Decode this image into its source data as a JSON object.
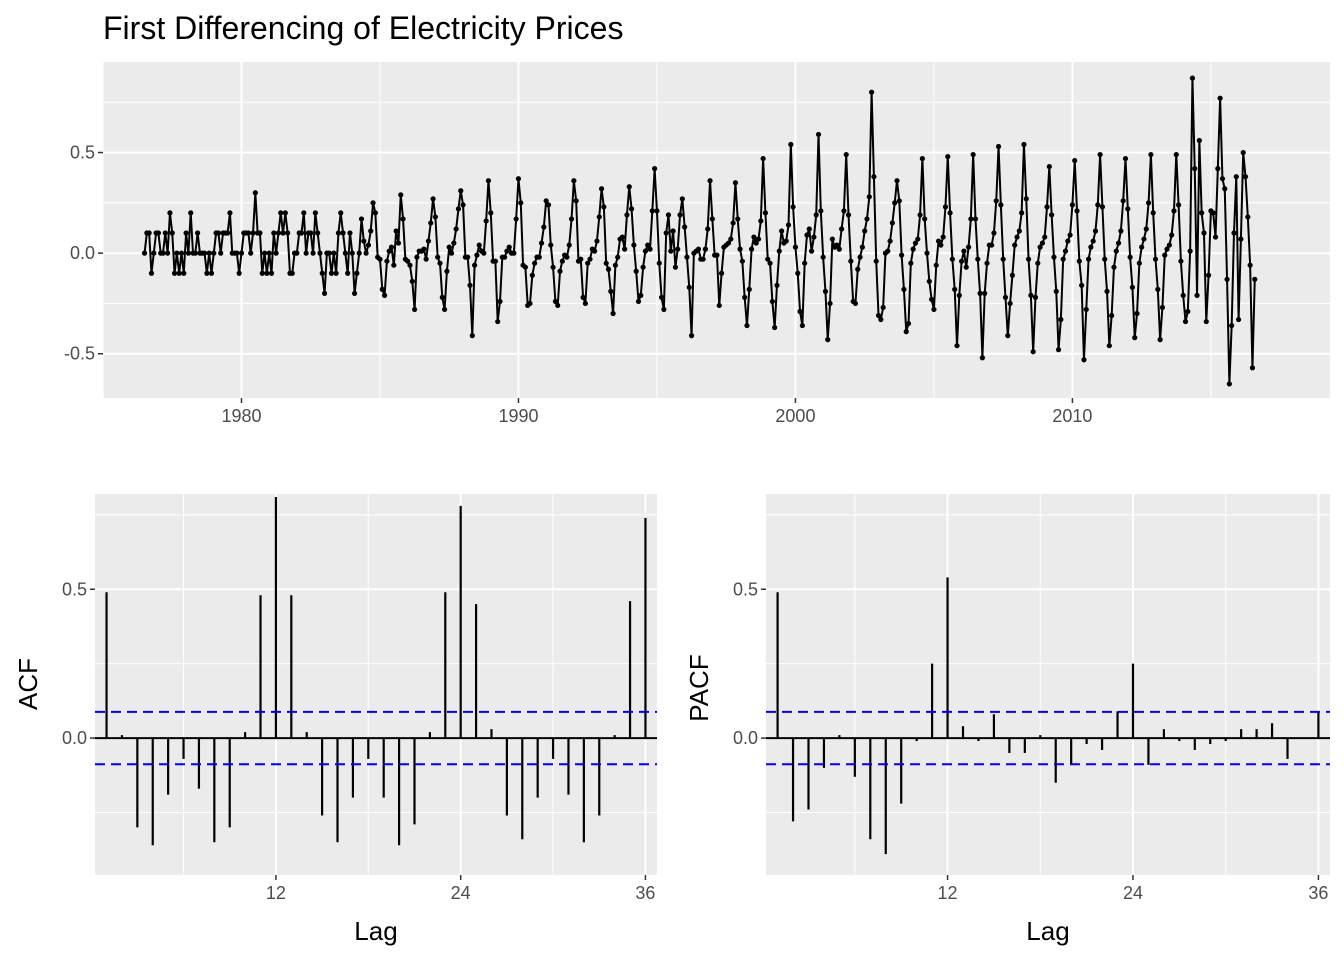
{
  "chart_data": [
    {
      "type": "line",
      "title": "First Differencing of Electricity Prices",
      "xlabel": "",
      "ylabel": "",
      "xlim": [
        1975.0,
        2019.3
      ],
      "ylim": [
        -0.72,
        0.95
      ],
      "x_ticks": [
        1980,
        1990,
        2000,
        2010
      ],
      "y_ticks": [
        -0.5,
        0.0,
        0.5
      ],
      "x_tick_labels": [
        "1980",
        "1990",
        "2000",
        "2010"
      ],
      "y_tick_labels": [
        "-0.5",
        "0.0",
        "0.5"
      ],
      "grid": true,
      "series": [
        {
          "start": 1976.5,
          "frequency": 12,
          "values": [
            0.0,
            0.1,
            0.1,
            -0.1,
            0.0,
            0.1,
            0.1,
            0.0,
            0.0,
            0.1,
            0.0,
            0.2,
            0.1,
            -0.1,
            0.0,
            -0.1,
            0.0,
            -0.1,
            0.1,
            0.0,
            0.2,
            0.0,
            0.0,
            0.1,
            0.0,
            0.0,
            0.0,
            -0.1,
            0.0,
            -0.1,
            0.0,
            0.1,
            0.1,
            0.0,
            0.1,
            0.1,
            0.1,
            0.2,
            0.0,
            0.0,
            0.0,
            -0.1,
            0.0,
            0.1,
            0.1,
            0.1,
            0.0,
            0.1,
            0.3,
            0.1,
            0.1,
            -0.1,
            0.0,
            -0.1,
            0.0,
            -0.1,
            0.1,
            0.0,
            0.1,
            0.2,
            0.1,
            0.2,
            0.1,
            -0.1,
            -0.1,
            0.0,
            0.0,
            0.1,
            0.1,
            0.2,
            0.0,
            0.1,
            0.1,
            0.0,
            0.2,
            0.1,
            0.0,
            -0.1,
            -0.2,
            0.0,
            0.0,
            -0.1,
            0.0,
            -0.1,
            0.1,
            0.2,
            0.1,
            0.0,
            -0.1,
            0.1,
            0.0,
            -0.2,
            -0.1,
            0.0,
            0.17,
            0.06,
            0.0,
            0.04,
            0.11,
            0.25,
            0.2,
            -0.02,
            -0.03,
            -0.18,
            -0.21,
            -0.04,
            0.01,
            0.03,
            -0.06,
            0.11,
            0.05,
            0.29,
            0.17,
            -0.03,
            -0.04,
            -0.06,
            -0.14,
            -0.28,
            -0.02,
            0.01,
            0.01,
            0.02,
            -0.03,
            0.06,
            0.15,
            0.27,
            0.18,
            -0.02,
            -0.05,
            -0.22,
            -0.28,
            -0.09,
            0.03,
            0.0,
            0.05,
            0.12,
            0.22,
            0.31,
            0.24,
            -0.02,
            -0.02,
            -0.16,
            -0.41,
            -0.06,
            -0.01,
            0.04,
            0.01,
            0.0,
            0.16,
            0.36,
            0.2,
            -0.04,
            -0.04,
            -0.34,
            -0.24,
            -0.02,
            -0.02,
            0.01,
            0.03,
            0.0,
            0.0,
            0.17,
            0.37,
            0.25,
            -0.06,
            -0.07,
            -0.26,
            -0.25,
            -0.11,
            -0.05,
            -0.02,
            -0.02,
            0.05,
            0.13,
            0.26,
            0.24,
            0.04,
            -0.07,
            -0.24,
            -0.26,
            -0.09,
            -0.04,
            -0.01,
            -0.02,
            0.04,
            0.17,
            0.36,
            0.26,
            -0.04,
            -0.03,
            -0.22,
            -0.25,
            -0.05,
            -0.03,
            0.02,
            0.01,
            0.06,
            0.18,
            0.32,
            0.23,
            -0.05,
            -0.08,
            -0.19,
            -0.3,
            -0.06,
            -0.02,
            0.07,
            0.08,
            0.02,
            0.19,
            0.33,
            0.22,
            0.04,
            -0.09,
            -0.24,
            -0.21,
            -0.07,
            0.01,
            0.04,
            0.02,
            0.21,
            0.42,
            0.21,
            -0.05,
            -0.22,
            -0.28,
            0.1,
            0.19,
            0.01,
            0.11,
            -0.07,
            0.02,
            0.19,
            0.27,
            0.13,
            -0.02,
            -0.17,
            -0.41,
            0.0,
            0.01,
            0.02,
            -0.03,
            -0.03,
            0.02,
            0.12,
            0.36,
            0.17,
            -0.01,
            -0.01,
            -0.26,
            -0.1,
            0.03,
            0.04,
            0.05,
            0.07,
            0.15,
            0.35,
            0.17,
            0.02,
            -0.04,
            -0.22,
            -0.36,
            -0.18,
            0.02,
            0.08,
            0.05,
            0.07,
            0.16,
            0.47,
            0.2,
            -0.03,
            -0.05,
            -0.24,
            -0.37,
            -0.16,
            0.01,
            0.11,
            0.05,
            0.06,
            0.14,
            0.54,
            0.23,
            0.03,
            -0.1,
            -0.29,
            -0.36,
            -0.05,
            0.09,
            0.12,
            0.01,
            0.08,
            0.19,
            0.59,
            0.21,
            -0.02,
            -0.19,
            -0.43,
            -0.25,
            0.07,
            0.03,
            0.04,
            0.02,
            0.12,
            0.21,
            0.49,
            0.19,
            -0.04,
            -0.24,
            -0.25,
            -0.08,
            -0.02,
            0.03,
            0.11,
            0.17,
            0.28,
            0.8,
            0.38,
            -0.04,
            -0.31,
            -0.33,
            -0.27,
            0.0,
            0.01,
            0.06,
            0.15,
            0.25,
            0.36,
            0.26,
            -0.01,
            -0.18,
            -0.39,
            -0.35,
            -0.05,
            0.02,
            0.05,
            0.07,
            0.19,
            0.47,
            0.17,
            0.0,
            -0.14,
            -0.23,
            -0.28,
            -0.06,
            0.06,
            0.04,
            0.08,
            0.23,
            0.48,
            0.2,
            -0.03,
            -0.18,
            -0.46,
            -0.21,
            -0.04,
            0.01,
            -0.07,
            0.03,
            0.17,
            0.49,
            0.17,
            -0.03,
            -0.2,
            -0.52,
            -0.2,
            -0.05,
            0.04,
            0.04,
            0.1,
            0.26,
            0.53,
            0.24,
            -0.03,
            -0.22,
            -0.41,
            -0.25,
            -0.11,
            0.04,
            0.08,
            0.11,
            0.2,
            0.54,
            0.27,
            -0.03,
            -0.21,
            -0.49,
            -0.22,
            -0.05,
            0.03,
            0.05,
            0.08,
            0.23,
            0.43,
            0.19,
            -0.02,
            -0.19,
            -0.48,
            -0.33,
            -0.03,
            0.01,
            0.06,
            0.09,
            0.24,
            0.46,
            0.21,
            -0.04,
            -0.16,
            -0.53,
            -0.28,
            -0.03,
            0.03,
            0.06,
            0.11,
            0.24,
            0.49,
            0.23,
            -0.03,
            -0.19,
            -0.46,
            -0.31,
            -0.07,
            0.01,
            0.05,
            0.11,
            0.26,
            0.47,
            0.22,
            -0.02,
            -0.17,
            -0.42,
            -0.3,
            -0.05,
            0.03,
            0.07,
            0.12,
            0.25,
            0.49,
            0.2,
            -0.03,
            -0.18,
            -0.43,
            -0.27,
            -0.01,
            0.02,
            0.04,
            0.09,
            0.21,
            0.49,
            0.24,
            -0.04,
            -0.21,
            -0.34,
            -0.29,
            0.01,
            0.87,
            0.42,
            -0.21,
            0.56,
            0.2,
            0.1,
            -0.34,
            -0.11,
            0.21,
            0.2,
            0.08,
            0.42,
            0.77,
            0.37,
            0.32,
            -0.13,
            -0.65,
            -0.36,
            0.1,
            0.38,
            -0.33,
            0.07,
            0.5,
            0.38,
            0.18,
            -0.06,
            -0.57,
            -0.13
          ]
        }
      ]
    },
    {
      "type": "bar",
      "title": "",
      "xlabel": "Lag",
      "ylabel": "ACF",
      "ylim": [
        -0.46,
        0.82
      ],
      "x_ticks": [
        12,
        24,
        36
      ],
      "x_tick_labels": [
        "12",
        "24",
        "36"
      ],
      "y_ticks": [
        0.0,
        0.5
      ],
      "y_tick_labels": [
        "0.0",
        "0.5"
      ],
      "lags": [
        1,
        2,
        3,
        4,
        5,
        6,
        7,
        8,
        9,
        10,
        11,
        12,
        13,
        14,
        15,
        16,
        17,
        18,
        19,
        20,
        21,
        22,
        23,
        24,
        25,
        26,
        27,
        28,
        29,
        30,
        31,
        32,
        33,
        34,
        35,
        36
      ],
      "values": [
        0.49,
        0.01,
        -0.3,
        -0.36,
        -0.19,
        -0.07,
        -0.17,
        -0.35,
        -0.3,
        0.02,
        0.48,
        0.81,
        0.48,
        0.02,
        -0.26,
        -0.35,
        -0.2,
        -0.07,
        -0.2,
        -0.36,
        -0.29,
        0.02,
        0.49,
        0.78,
        0.45,
        0.03,
        -0.26,
        -0.34,
        -0.2,
        -0.07,
        -0.19,
        -0.35,
        -0.26,
        0.01,
        0.46,
        0.74
      ],
      "confidence_bound": 0.088,
      "grid": true
    },
    {
      "type": "bar",
      "title": "",
      "xlabel": "Lag",
      "ylabel": "PACF",
      "ylim": [
        -0.46,
        0.82
      ],
      "x_ticks": [
        12,
        24,
        36
      ],
      "x_tick_labels": [
        "12",
        "24",
        "36"
      ],
      "y_ticks": [
        0.0,
        0.5
      ],
      "y_tick_labels": [
        "0.0",
        "0.5"
      ],
      "lags": [
        1,
        2,
        3,
        4,
        5,
        6,
        7,
        8,
        9,
        10,
        11,
        12,
        13,
        14,
        15,
        16,
        17,
        18,
        19,
        20,
        21,
        22,
        23,
        24,
        25,
        26,
        27,
        28,
        29,
        30,
        31,
        32,
        33,
        34,
        35,
        36
      ],
      "values": [
        0.49,
        -0.28,
        -0.24,
        -0.1,
        0.01,
        -0.13,
        -0.34,
        -0.39,
        -0.22,
        -0.01,
        0.25,
        0.54,
        0.04,
        -0.01,
        0.08,
        -0.05,
        -0.05,
        0.01,
        -0.15,
        -0.09,
        -0.02,
        -0.04,
        0.09,
        0.25,
        -0.09,
        0.03,
        -0.01,
        -0.04,
        -0.02,
        -0.01,
        0.03,
        0.03,
        0.05,
        -0.07,
        0.0,
        0.09
      ],
      "confidence_bound": 0.088,
      "grid": true
    }
  ]
}
